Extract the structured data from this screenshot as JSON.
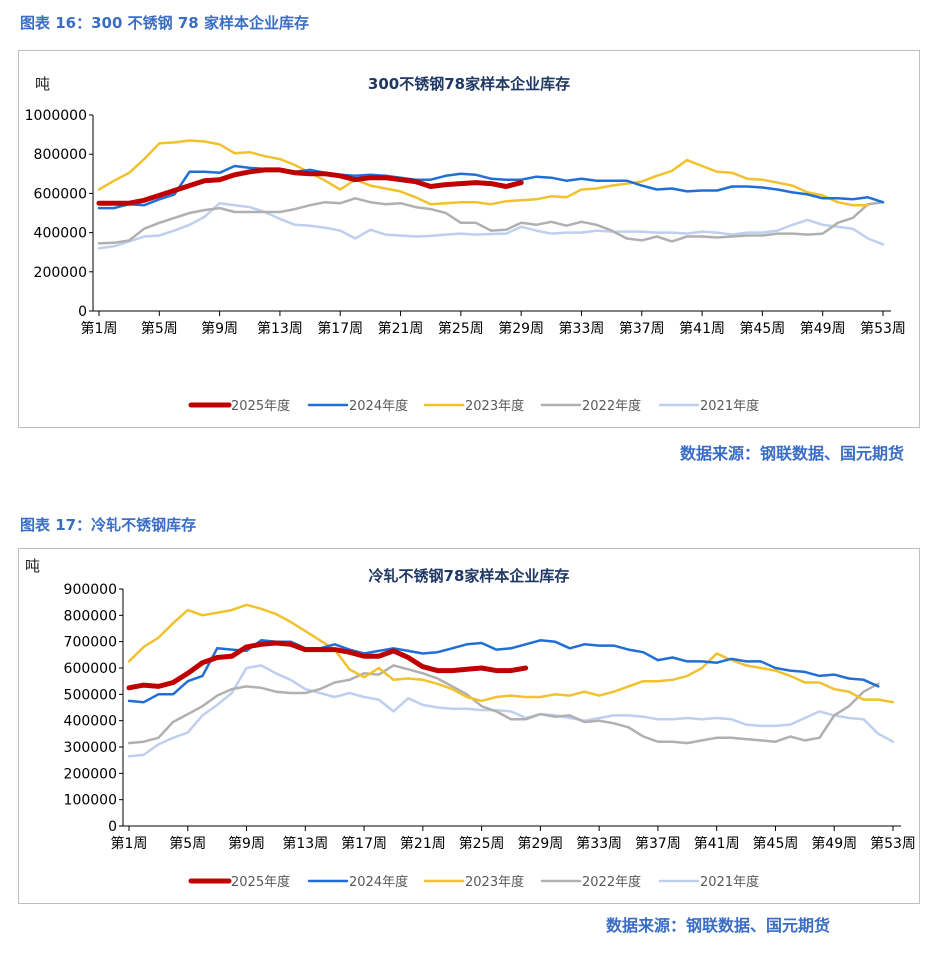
{
  "figures": [
    {
      "caption": "图表 16：300 不锈钢 78 家样本企业库存",
      "source": "数据来源：钢联数据、国元期货",
      "chart_data": {
        "type": "line",
        "title": "300不锈钢78家样本企业库存",
        "ylabel": "吨",
        "xlabel": "",
        "x_ticks": [
          "第1周",
          "第5周",
          "第9周",
          "第13周",
          "第17周",
          "第21周",
          "第25周",
          "第29周",
          "第33周",
          "第37周",
          "第41周",
          "第45周",
          "第49周",
          "第53周"
        ],
        "ylim": [
          0,
          1000000
        ],
        "y_ticks": [
          0,
          200000,
          400000,
          600000,
          800000,
          1000000
        ],
        "grid": false,
        "legend_position": "bottom",
        "series": [
          {
            "name": "2025年度",
            "color": "#C00000",
            "values": [
              550000,
              550000,
              550000,
              565000,
              590000,
              615000,
              640000,
              665000,
              670000,
              695000,
              710000,
              720000,
              720000,
              705000,
              700000,
              700000,
              690000,
              670000,
              680000,
              680000,
              670000,
              660000,
              635000,
              645000,
              650000,
              655000,
              650000,
              635000,
              655000
            ]
          },
          {
            "name": "2024年度",
            "color": "#1F6FD6",
            "values": [
              525000,
              525000,
              545000,
              540000,
              570000,
              595000,
              710000,
              710000,
              705000,
              740000,
              730000,
              725000,
              715000,
              710000,
              720000,
              705000,
              695000,
              690000,
              695000,
              690000,
              680000,
              670000,
              670000,
              690000,
              700000,
              695000,
              675000,
              670000,
              670000,
              685000,
              680000,
              665000,
              675000,
              665000,
              665000,
              665000,
              640000,
              620000,
              625000,
              610000,
              615000,
              615000,
              635000,
              635000,
              630000,
              620000,
              605000,
              595000,
              575000,
              575000,
              570000,
              580000,
              555000
            ]
          },
          {
            "name": "2023年度",
            "color": "#F2C12E",
            "values": [
              620000,
              665000,
              705000,
              775000,
              855000,
              860000,
              870000,
              865000,
              850000,
              805000,
              810000,
              790000,
              775000,
              745000,
              705000,
              665000,
              620000,
              670000,
              640000,
              625000,
              610000,
              580000,
              545000,
              550000,
              555000,
              555000,
              545000,
              560000,
              565000,
              570000,
              585000,
              580000,
              620000,
              625000,
              640000,
              650000,
              660000,
              690000,
              715000,
              770000,
              740000,
              710000,
              705000,
              675000,
              670000,
              655000,
              640000,
              605000,
              590000,
              555000,
              540000,
              540000
            ]
          },
          {
            "name": "2022年度",
            "color": "#B0B0B0",
            "values": [
              345000,
              348000,
              360000,
              420000,
              450000,
              475000,
              500000,
              515000,
              525000,
              505000,
              505000,
              505000,
              505000,
              520000,
              540000,
              555000,
              550000,
              575000,
              555000,
              545000,
              550000,
              530000,
              520000,
              500000,
              450000,
              450000,
              410000,
              415000,
              450000,
              440000,
              455000,
              435000,
              455000,
              440000,
              410000,
              370000,
              360000,
              380000,
              355000,
              380000,
              380000,
              375000,
              380000,
              385000,
              385000,
              395000,
              395000,
              390000,
              395000,
              450000,
              475000,
              545000,
              555000
            ]
          },
          {
            "name": "2021年度",
            "color": "#BFCFEF",
            "values": [
              320000,
              330000,
              355000,
              380000,
              385000,
              410000,
              440000,
              480000,
              550000,
              540000,
              530000,
              505000,
              470000,
              440000,
              435000,
              425000,
              410000,
              370000,
              415000,
              390000,
              385000,
              380000,
              383000,
              390000,
              395000,
              390000,
              393000,
              395000,
              430000,
              410000,
              395000,
              400000,
              400000,
              410000,
              405000,
              405000,
              405000,
              400000,
              400000,
              395000,
              405000,
              400000,
              390000,
              400000,
              400000,
              410000,
              440000,
              465000,
              440000,
              430000,
              420000,
              370000,
              340000
            ]
          }
        ]
      }
    },
    {
      "caption": "图表 17：冷轧不锈钢库存",
      "source": "数据来源：钢联数据、国元期货",
      "chart_data": {
        "type": "line",
        "title": "冷轧不锈钢78家样本企业库存",
        "ylabel": "吨",
        "xlabel": "",
        "x_ticks": [
          "第1周",
          "第5周",
          "第9周",
          "第13周",
          "第17周",
          "第21周",
          "第25周",
          "第29周",
          "第33周",
          "第37周",
          "第41周",
          "第45周",
          "第49周",
          "第53周"
        ],
        "ylim": [
          0,
          900000
        ],
        "y_ticks": [
          0,
          100000,
          200000,
          300000,
          400000,
          500000,
          600000,
          700000,
          800000,
          900000
        ],
        "grid": false,
        "legend_position": "bottom",
        "series": [
          {
            "name": "2025年度",
            "color": "#C00000",
            "values": [
              525000,
              535000,
              530000,
              545000,
              580000,
              620000,
              640000,
              645000,
              680000,
              690000,
              695000,
              690000,
              670000,
              670000,
              670000,
              660000,
              645000,
              645000,
              665000,
              640000,
              605000,
              590000,
              590000,
              595000,
              600000,
              590000,
              590000,
              600000
            ]
          },
          {
            "name": "2024年度",
            "color": "#1F6FD6",
            "values": [
              475000,
              470000,
              500000,
              500000,
              550000,
              570000,
              675000,
              670000,
              665000,
              705000,
              700000,
              700000,
              675000,
              675000,
              690000,
              670000,
              655000,
              665000,
              675000,
              665000,
              655000,
              660000,
              675000,
              690000,
              695000,
              670000,
              675000,
              690000,
              705000,
              700000,
              675000,
              690000,
              685000,
              685000,
              670000,
              660000,
              630000,
              640000,
              625000,
              625000,
              620000,
              635000,
              625000,
              625000,
              600000,
              590000,
              585000,
              570000,
              575000,
              560000,
              555000,
              530000
            ]
          },
          {
            "name": "2023年度",
            "color": "#F2C12E",
            "values": [
              625000,
              680000,
              715000,
              770000,
              820000,
              800000,
              810000,
              820000,
              840000,
              825000,
              805000,
              775000,
              740000,
              705000,
              670000,
              595000,
              565000,
              600000,
              555000,
              560000,
              555000,
              540000,
              520000,
              490000,
              475000,
              490000,
              495000,
              490000,
              490000,
              500000,
              495000,
              510000,
              495000,
              510000,
              530000,
              550000,
              550000,
              555000,
              570000,
              600000,
              655000,
              630000,
              610000,
              600000,
              590000,
              570000,
              545000,
              545000,
              520000,
              510000,
              480000,
              480000,
              470000
            ]
          },
          {
            "name": "2022年度",
            "color": "#B0B0B0",
            "values": [
              315000,
              320000,
              335000,
              395000,
              425000,
              455000,
              495000,
              520000,
              530000,
              525000,
              510000,
              505000,
              505000,
              520000,
              545000,
              555000,
              580000,
              575000,
              610000,
              595000,
              580000,
              560000,
              530000,
              500000,
              455000,
              435000,
              405000,
              405000,
              425000,
              415000,
              420000,
              395000,
              400000,
              390000,
              375000,
              340000,
              320000,
              320000,
              315000,
              325000,
              335000,
              335000,
              330000,
              325000,
              320000,
              340000,
              325000,
              335000,
              420000,
              455000,
              510000,
              540000
            ]
          },
          {
            "name": "2021年度",
            "color": "#BFCFEF",
            "values": [
              265000,
              270000,
              310000,
              335000,
              355000,
              420000,
              460000,
              505000,
              600000,
              610000,
              580000,
              555000,
              520000,
              505000,
              490000,
              505000,
              490000,
              480000,
              435000,
              485000,
              460000,
              450000,
              445000,
              445000,
              440000,
              440000,
              435000,
              410000,
              425000,
              420000,
              410000,
              400000,
              410000,
              420000,
              420000,
              415000,
              405000,
              405000,
              410000,
              405000,
              410000,
              405000,
              385000,
              380000,
              380000,
              385000,
              410000,
              435000,
              420000,
              410000,
              405000,
              350000,
              320000
            ]
          }
        ]
      }
    }
  ]
}
